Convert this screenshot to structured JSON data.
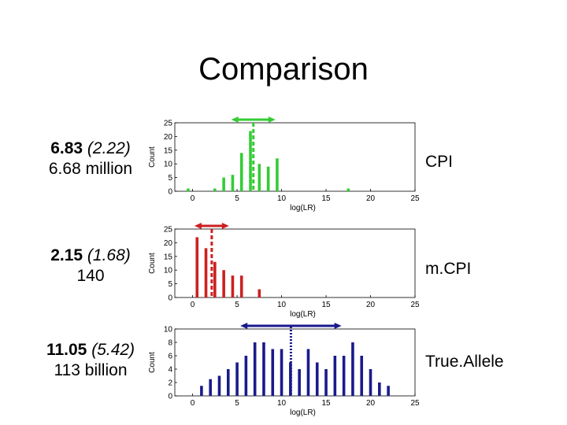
{
  "slide": {
    "title": "Comparison"
  },
  "rows": [
    {
      "primary": "6.83",
      "paren": "(2.22)",
      "secondary": "6.68 million",
      "method": "CPI"
    },
    {
      "primary": "2.15",
      "paren": "(1.68)",
      "secondary": "140",
      "method": "m.CPI"
    },
    {
      "primary": "11.05",
      "paren": "(5.42)",
      "secondary": "113 billion",
      "method": "True.Allele"
    }
  ],
  "chart_data": [
    {
      "type": "bar",
      "color": "#33cc33",
      "xlabel": "log(LR)",
      "ylabel": "Count",
      "xlim": [
        -2,
        25
      ],
      "ylim": [
        0,
        25
      ],
      "xticks": [
        0,
        5,
        10,
        15,
        20,
        25
      ],
      "yticks": [
        0,
        5,
        10,
        15,
        20,
        25
      ],
      "x": [
        -0.5,
        2.5,
        3.5,
        4.5,
        5.5,
        6.5,
        7.5,
        8.5,
        9.5,
        17.5
      ],
      "values": [
        1,
        1,
        5,
        6,
        14,
        22,
        10,
        9,
        12,
        1
      ],
      "marker": 6.83,
      "interval": [
        4.61,
        9.05
      ],
      "marker_style": "dashed"
    },
    {
      "type": "bar",
      "color": "#cc2020",
      "xlabel": "log(LR)",
      "ylabel": "Count",
      "xlim": [
        -2,
        25
      ],
      "ylim": [
        0,
        25
      ],
      "xticks": [
        0,
        5,
        10,
        15,
        20,
        25
      ],
      "yticks": [
        0,
        5,
        10,
        15,
        20,
        25
      ],
      "x": [
        0.5,
        1.5,
        2.5,
        3.5,
        4.5,
        5.5,
        7.5
      ],
      "values": [
        22,
        18,
        13,
        10,
        8,
        8,
        3
      ],
      "marker": 2.15,
      "interval": [
        0.47,
        3.83
      ],
      "marker_style": "dashed"
    },
    {
      "type": "bar",
      "color": "#1a1a8c",
      "xlabel": "log(LR)",
      "ylabel": "Count",
      "xlim": [
        -2,
        25
      ],
      "ylim": [
        0,
        10
      ],
      "xticks": [
        0,
        5,
        10,
        15,
        20,
        25
      ],
      "yticks": [
        0,
        2,
        4,
        6,
        8,
        10
      ],
      "x": [
        1.0,
        2.0,
        3.0,
        4.0,
        5.0,
        6.0,
        7.0,
        8.0,
        9.0,
        10.0,
        11.0,
        12.0,
        13.0,
        14.0,
        15.0,
        16.0,
        17.0,
        18.0,
        19.0,
        20.0,
        21.0,
        22.0
      ],
      "values": [
        1.5,
        2.5,
        3,
        4,
        5,
        6,
        8,
        8,
        7,
        7,
        5,
        4,
        7,
        5,
        4,
        6,
        6,
        8,
        6,
        4,
        2,
        1.5
      ],
      "marker": 11.05,
      "interval": [
        5.63,
        16.47
      ],
      "marker_style": "dotted"
    }
  ]
}
